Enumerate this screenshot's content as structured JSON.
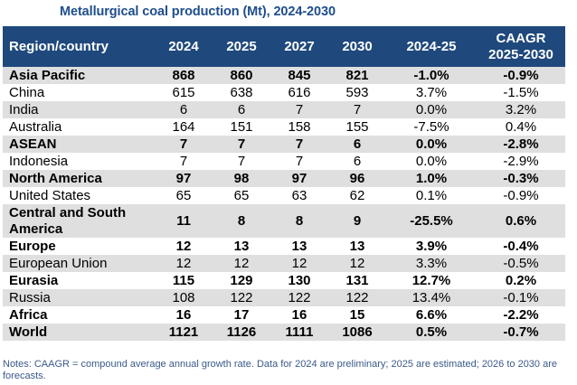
{
  "title": "Metallurgical coal production (Mt), 2024-2030",
  "table": {
    "headers": [
      "Region/country",
      "2024",
      "2025",
      "2027",
      "2030",
      "2024-25",
      "CAAGR 2025-2030"
    ],
    "header_caagr_line1": "CAAGR",
    "header_caagr_line2": "2025-2030",
    "rows": [
      {
        "region": "Asia Pacific",
        "v2024": "868",
        "v2025": "860",
        "v2027": "845",
        "v2030": "821",
        "chg": "-1.0%",
        "caagr": "-0.9%",
        "bold": true,
        "shade": "gray"
      },
      {
        "region": "China",
        "v2024": "615",
        "v2025": "638",
        "v2027": "616",
        "v2030": "593",
        "chg": "3.7%",
        "caagr": "-1.5%",
        "bold": false,
        "shade": "white"
      },
      {
        "region": "India",
        "v2024": "6",
        "v2025": "6",
        "v2027": "7",
        "v2030": "7",
        "chg": "0.0%",
        "caagr": "3.2%",
        "bold": false,
        "shade": "gray"
      },
      {
        "region": "Australia",
        "v2024": "164",
        "v2025": "151",
        "v2027": "158",
        "v2030": "155",
        "chg": "-7.5%",
        "caagr": "0.4%",
        "bold": false,
        "shade": "white"
      },
      {
        "region": "ASEAN",
        "v2024": "7",
        "v2025": "7",
        "v2027": "7",
        "v2030": "6",
        "chg": "0.0%",
        "caagr": "-2.8%",
        "bold": true,
        "shade": "gray"
      },
      {
        "region": "Indonesia",
        "v2024": "7",
        "v2025": "7",
        "v2027": "7",
        "v2030": "6",
        "chg": "0.0%",
        "caagr": "-2.9%",
        "bold": false,
        "shade": "white"
      },
      {
        "region": "North America",
        "v2024": "97",
        "v2025": "98",
        "v2027": "97",
        "v2030": "96",
        "chg": "1.0%",
        "caagr": "-0.3%",
        "bold": true,
        "shade": "gray"
      },
      {
        "region": "United States",
        "v2024": "65",
        "v2025": "65",
        "v2027": "63",
        "v2030": "62",
        "chg": "0.1%",
        "caagr": "-0.9%",
        "bold": false,
        "shade": "white"
      },
      {
        "region": "Central and South America",
        "v2024": "11",
        "v2025": "8",
        "v2027": "8",
        "v2030": "9",
        "chg": "-25.5%",
        "caagr": "0.6%",
        "bold": true,
        "shade": "gray",
        "tall": true
      },
      {
        "region": "Europe",
        "v2024": "12",
        "v2025": "13",
        "v2027": "13",
        "v2030": "13",
        "chg": "3.9%",
        "caagr": "-0.4%",
        "bold": true,
        "shade": "white"
      },
      {
        "region": "European Union",
        "v2024": "12",
        "v2025": "12",
        "v2027": "12",
        "v2030": "12",
        "chg": "3.3%",
        "caagr": "-0.5%",
        "bold": false,
        "shade": "gray"
      },
      {
        "region": "Eurasia",
        "v2024": "115",
        "v2025": "129",
        "v2027": "130",
        "v2030": "131",
        "chg": "12.7%",
        "caagr": "0.2%",
        "bold": true,
        "shade": "white"
      },
      {
        "region": "Russia",
        "v2024": "108",
        "v2025": "122",
        "v2027": "122",
        "v2030": "122",
        "chg": "13.4%",
        "caagr": "-0.1%",
        "bold": false,
        "shade": "gray"
      },
      {
        "region": "Africa",
        "v2024": "16",
        "v2025": "17",
        "v2027": "16",
        "v2030": "15",
        "chg": "6.6%",
        "caagr": "-2.2%",
        "bold": true,
        "shade": "white"
      },
      {
        "region": "World",
        "v2024": "1121",
        "v2025": "1126",
        "v2027": "1111",
        "v2030": "1086",
        "chg": "0.5%",
        "caagr": "-0.7%",
        "bold": true,
        "shade": "gray"
      }
    ]
  },
  "notes": "Notes: CAAGR = compound average annual growth rate. Data for 2024 are preliminary; 2025 are estimated; 2026 to 2030 are forecasts.",
  "colors": {
    "header_bg": "#1f497d",
    "title": "#1f4e8c",
    "band_gray": "#dfdfdf"
  }
}
